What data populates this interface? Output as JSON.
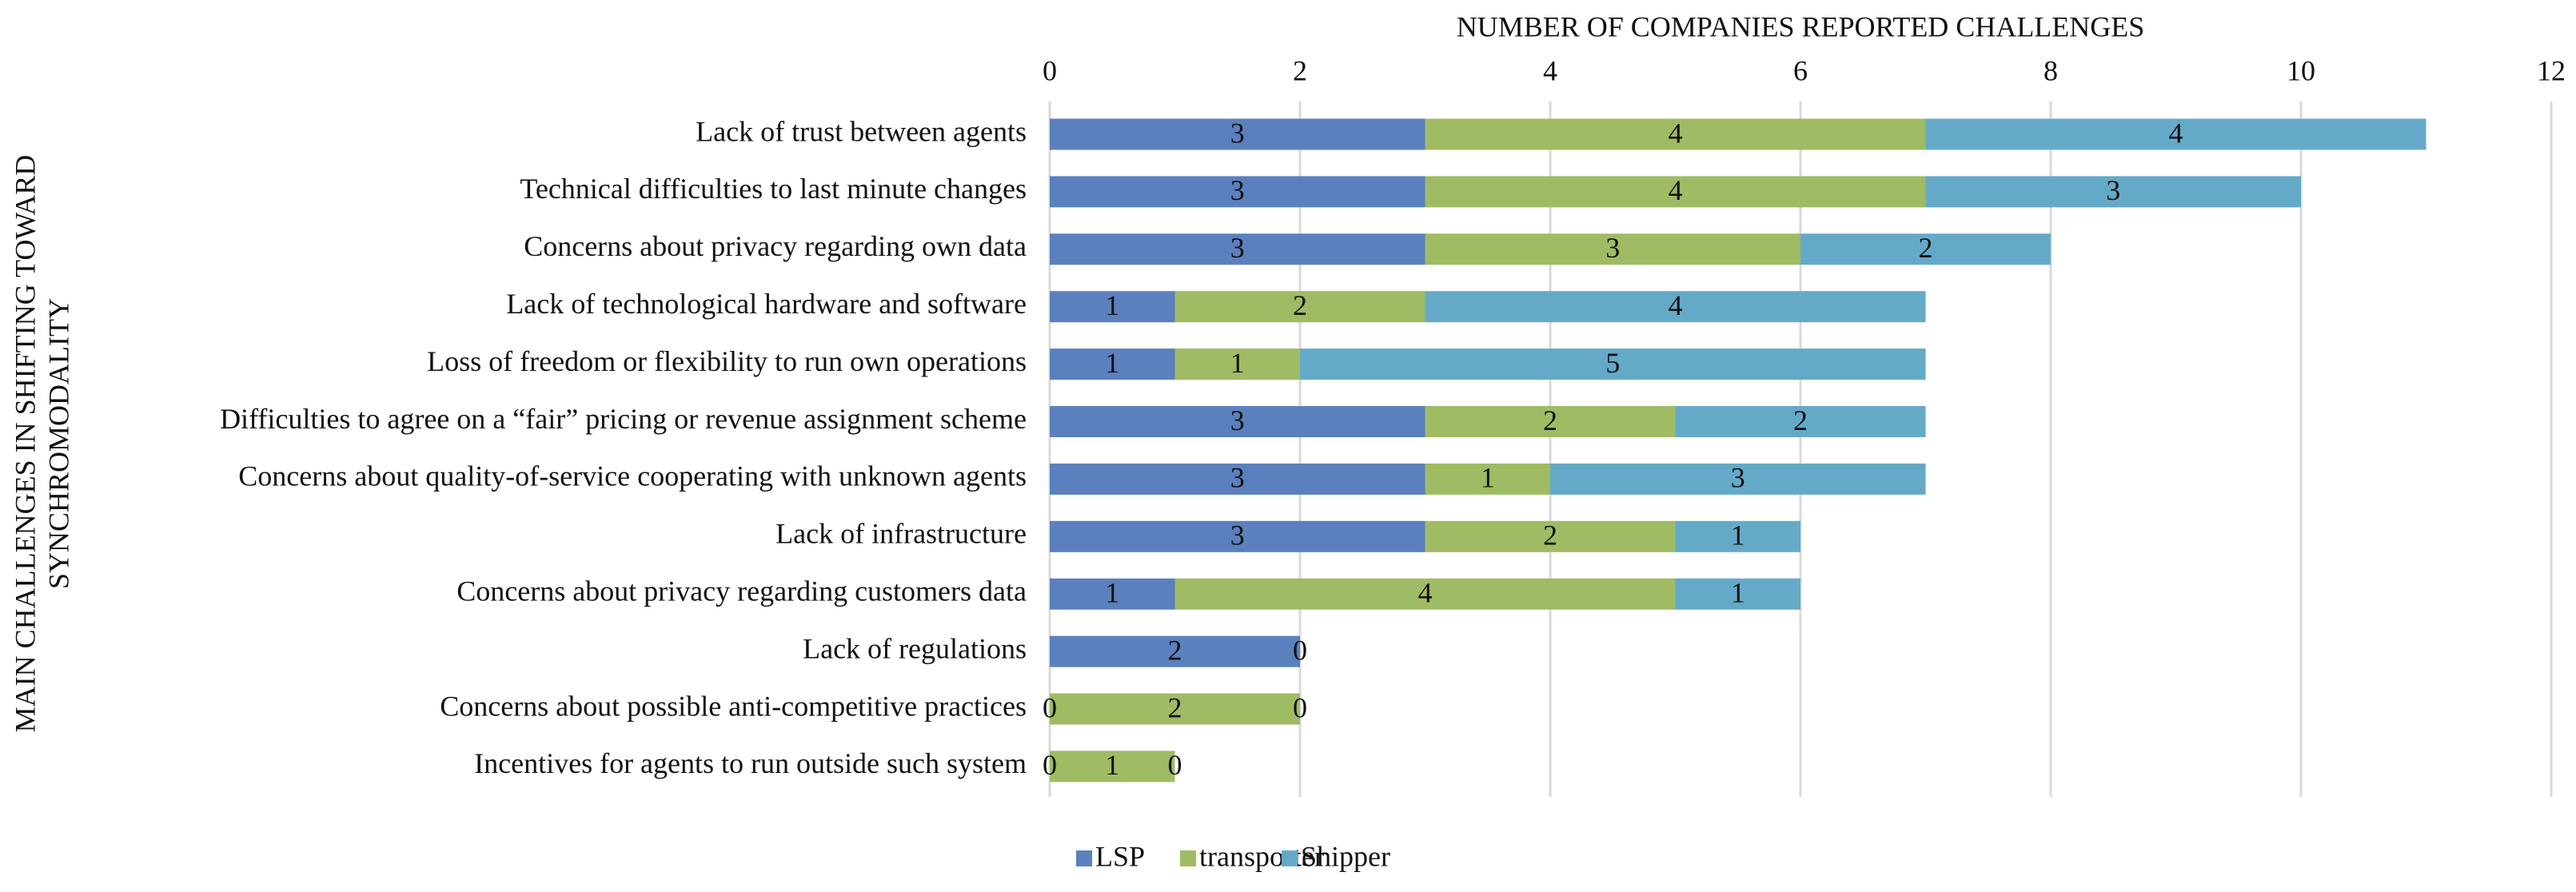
{
  "chart_data": {
    "type": "stacked_bar_horizontal",
    "x_label": "NUMBER OF COMPANIES REPORTED CHALLENGES",
    "y_label": [
      "MAIN CHALLENGES  IN SHIFTING TOWARD",
      "SYNCHROMODALITY"
    ],
    "categories": [
      "Lack of trust between agents",
      "Technical difficulties to last minute changes",
      "Concerns about privacy regarding own data",
      "Lack of technological hardware and software",
      "Loss of freedom or flexibility to run own operations",
      "Difficulties to agree on a “fair” pricing or revenue assignment scheme",
      "Concerns about quality-of-service cooperating with unknown agents",
      "Lack of infrastructure",
      "Concerns about privacy regarding customers data",
      "Lack of regulations",
      "Concerns about possible anti-competitive practices",
      "Incentives for agents to run outside such system"
    ],
    "series": [
      {
        "name": "LSP",
        "color": "#5b80be",
        "values": [
          3,
          3,
          3,
          1,
          1,
          3,
          3,
          3,
          1,
          2,
          0,
          0
        ]
      },
      {
        "name": "transporter",
        "color": "#9fbb63",
        "values": [
          4,
          4,
          3,
          2,
          1,
          2,
          1,
          2,
          4,
          0,
          2,
          1
        ]
      },
      {
        "name": "Shipper",
        "color": "#64aac8",
        "values": [
          4,
          3,
          2,
          4,
          5,
          2,
          3,
          1,
          1,
          null,
          0,
          0
        ]
      }
    ],
    "xlim": [
      0,
      12
    ],
    "xticks": [
      0,
      2,
      4,
      6,
      8,
      10,
      12
    ],
    "grid": true,
    "legend": "bottom"
  }
}
